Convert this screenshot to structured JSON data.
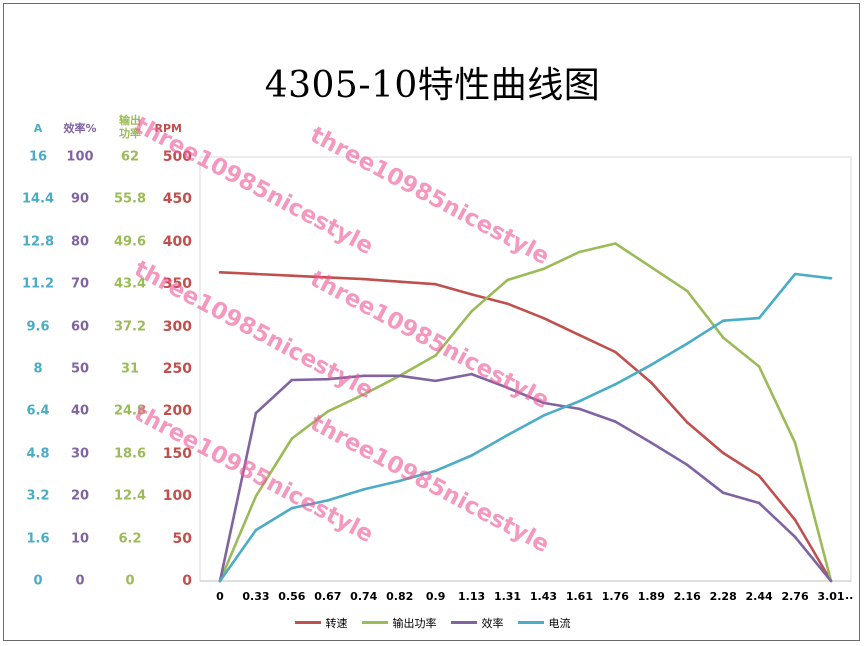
{
  "chart_data": {
    "type": "line",
    "title": "4305-10特性曲线图",
    "categories": [
      "0",
      "0.33",
      "0.56",
      "0.67",
      "0.74",
      "0.82",
      "0.9",
      "1.13",
      "1.31",
      "1.43",
      "1.61",
      "1.76",
      "1.89",
      "2.16",
      "2.28",
      "2.44",
      "2.76",
      "3.01"
    ],
    "x_more_marker": "..",
    "ylim": [
      0,
      500
    ],
    "grid": false,
    "legend_position": "bottom",
    "axes": [
      {
        "name": "current",
        "header": "A",
        "color": "#4bacc6",
        "ticks": [
          "0",
          "1.6",
          "3.2",
          "4.8",
          "6.4",
          "8",
          "9.6",
          "11.2",
          "12.8",
          "14.4",
          "16"
        ]
      },
      {
        "name": "efficiency",
        "header": "效率%",
        "color": "#8064a2",
        "ticks": [
          "0",
          "10",
          "20",
          "30",
          "40",
          "50",
          "60",
          "70",
          "80",
          "90",
          "100"
        ]
      },
      {
        "name": "output_power",
        "header_line1": "输出",
        "header_line2": "功率",
        "color": "#9bbb59",
        "ticks": [
          "0",
          "6.2",
          "12.4",
          "18.6",
          "24.8",
          "31",
          "37.2",
          "43.4",
          "49.6",
          "55.8",
          "62"
        ]
      },
      {
        "name": "speed",
        "header": "RPM",
        "color": "#c0504d",
        "ticks": [
          "0",
          "50",
          "100",
          "150",
          "200",
          "250",
          "300",
          "350",
          "400",
          "450",
          "500"
        ]
      }
    ],
    "series": [
      {
        "name": "转速",
        "color": "#c0504d",
        "values": [
          364,
          362,
          360,
          358,
          356,
          353,
          350,
          338,
          327,
          310,
          290,
          270,
          234,
          187,
          151,
          124,
          72,
          0
        ]
      },
      {
        "name": "输出功率",
        "color": "#9bbb59",
        "values": [
          0,
          100,
          168,
          200,
          220,
          242,
          266,
          318,
          355,
          368,
          388,
          398,
          370,
          342,
          287,
          253,
          163,
          0
        ]
      },
      {
        "name": "效率",
        "color": "#8064a2",
        "values": [
          0,
          198,
          237,
          238,
          242,
          242,
          236,
          244,
          228,
          210,
          203,
          188,
          163,
          137,
          104,
          92,
          52,
          0
        ]
      },
      {
        "name": "电流",
        "color": "#4bacc6",
        "values": [
          0,
          60,
          86,
          95,
          108,
          118,
          130,
          148,
          172,
          195,
          212,
          232,
          255,
          280,
          307,
          310,
          362,
          357
        ]
      }
    ]
  },
  "watermark": "three10985nicestyle"
}
